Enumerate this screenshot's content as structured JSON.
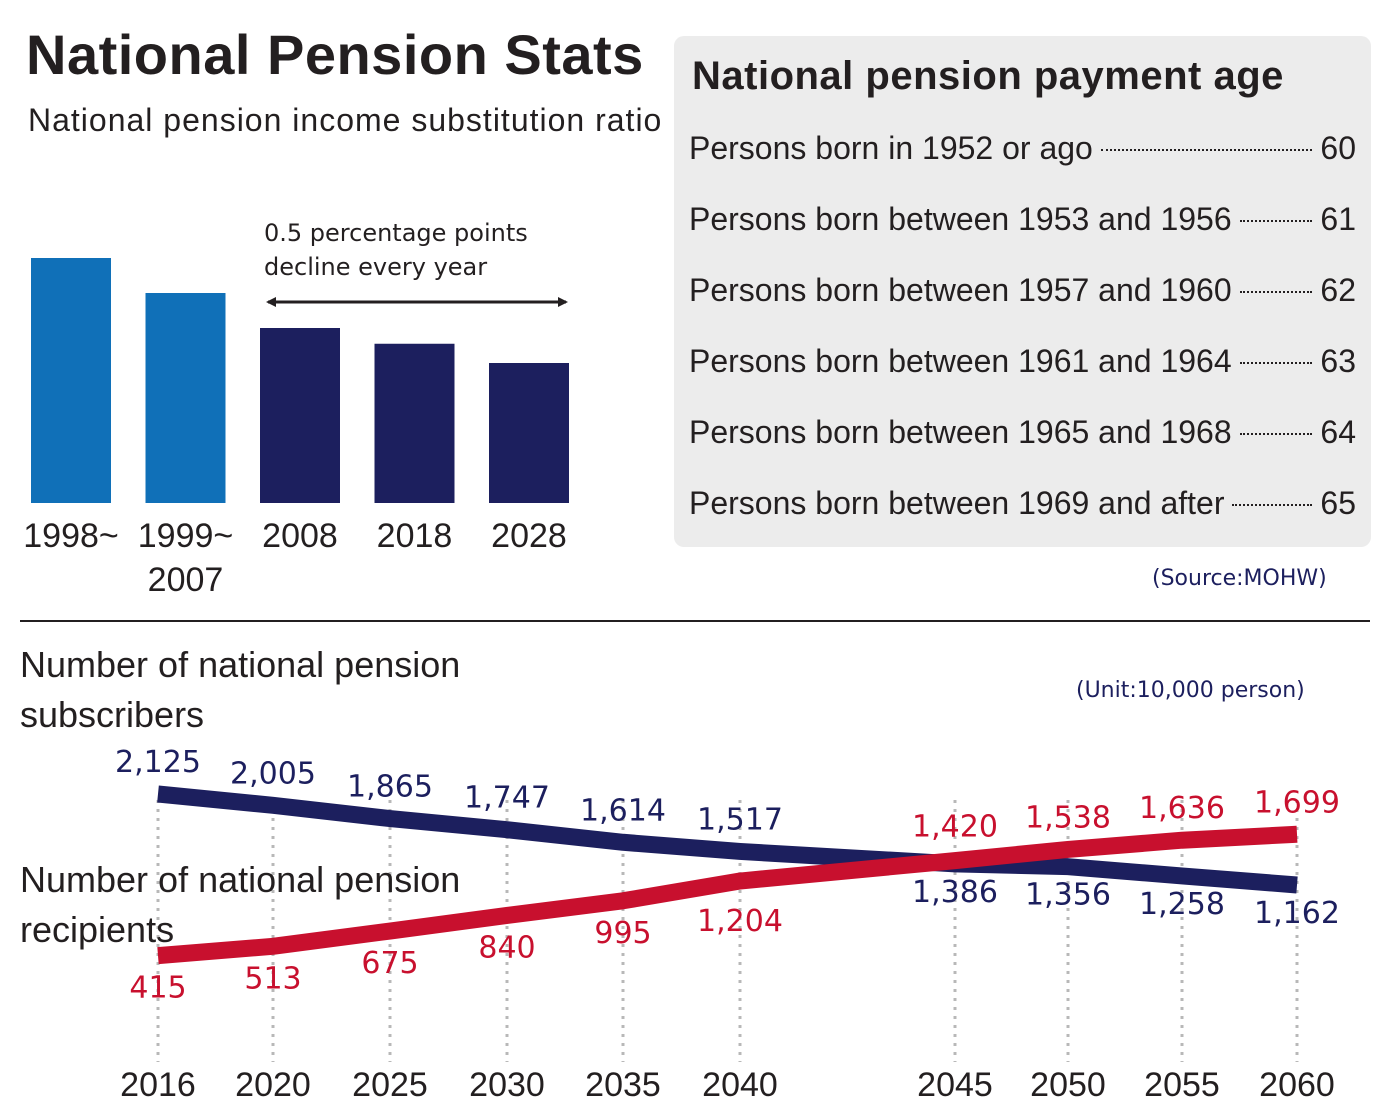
{
  "title": "National Pension Stats",
  "source": "(Source:MOHW)",
  "colors": {
    "light_blue": "#1070b8",
    "navy": "#1c1f5e",
    "red": "#c8102e",
    "panel_bg": "#ececec"
  },
  "chart_data": [
    {
      "type": "bar",
      "title": "National pension income substitution ratio",
      "categories": [
        "1998~",
        "1999~\n2007",
        "2008",
        "2018",
        "2028"
      ],
      "values": [
        70,
        60,
        50,
        45.5,
        40
      ],
      "ylim": [
        0,
        70
      ],
      "bar_colors": [
        "#1070b8",
        "#1070b8",
        "#1c1f5e",
        "#1c1f5e",
        "#1c1f5e"
      ],
      "annotation": "0.5 percentage points decline every year",
      "annotation_lines": [
        "0.5 percentage points",
        "decline every year"
      ]
    },
    {
      "type": "table",
      "title": "National pension payment age",
      "rows": [
        {
          "label": "Persons born in 1952 or ago",
          "value": "60"
        },
        {
          "label": "Persons born between 1953 and 1956",
          "value": "61"
        },
        {
          "label": "Persons born between 1957 and 1960",
          "value": "62"
        },
        {
          "label": "Persons born between 1961 and 1964",
          "value": "63"
        },
        {
          "label": "Persons born between 1965 and 1968",
          "value": "64"
        },
        {
          "label": "Persons born between 1969 and after",
          "value": "65"
        }
      ]
    },
    {
      "type": "line",
      "unit": "(Unit:10,000 person)",
      "x": [
        2016,
        2020,
        2025,
        2030,
        2035,
        2040,
        2045,
        2050,
        2055,
        2060
      ],
      "grid": "vertical dotted",
      "series": [
        {
          "name": "Number of national pension subscribers",
          "name_lines": [
            "Number of national pension",
            "subscribers"
          ],
          "color": "#1c1f5e",
          "values": [
            2125,
            2005,
            1865,
            1747,
            1614,
            1517,
            1386,
            1356,
            1258,
            1162
          ],
          "labels": [
            "2,125",
            "2,005",
            "1,865",
            "1,747",
            "1,614",
            "1,517",
            "1,386",
            "1,356",
            "1,258",
            "1,162"
          ]
        },
        {
          "name": "Number of national pension recipients",
          "name_lines": [
            "Number of national pension",
            "recipients"
          ],
          "color": "#c8102e",
          "values": [
            415,
            513,
            675,
            840,
            995,
            1204,
            1420,
            1538,
            1636,
            1699
          ],
          "labels": [
            "415",
            "513",
            "675",
            "840",
            "995",
            "1,204",
            "1,420",
            "1,538",
            "1,636",
            "1,699"
          ]
        }
      ]
    }
  ]
}
